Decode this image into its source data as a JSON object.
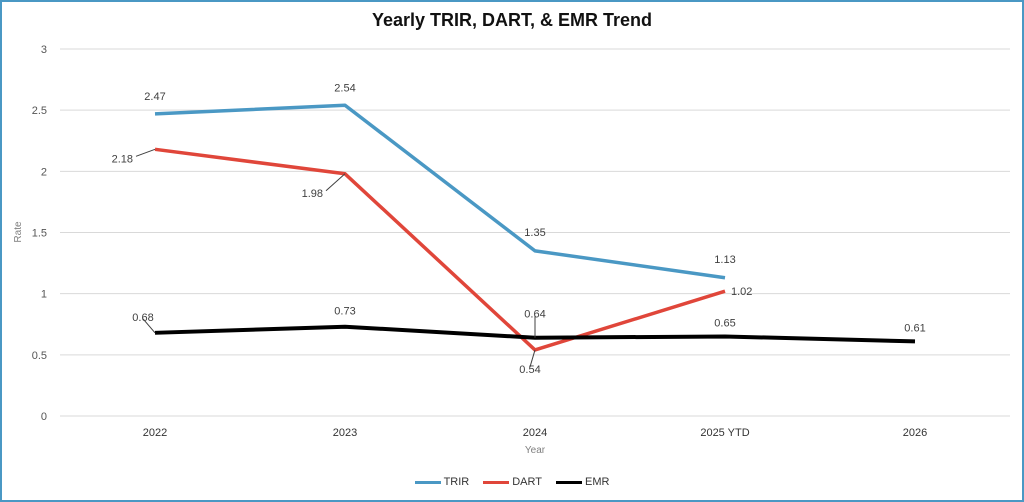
{
  "chart_data": {
    "type": "line",
    "title": "Yearly TRIR, DART, & EMR Trend",
    "xlabel": "Year",
    "ylabel": "Rate",
    "categories": [
      "2022",
      "2023",
      "2024",
      "2025 YTD",
      "2026"
    ],
    "ylim": [
      0,
      3
    ],
    "yticks": [
      "0",
      "0.5",
      "1",
      "1.5",
      "2",
      "2.5",
      "3"
    ],
    "grid": true,
    "legend_position": "bottom",
    "series": [
      {
        "name": "TRIR",
        "color": "#4a98c4",
        "values": [
          2.47,
          2.54,
          1.35,
          1.13,
          null
        ],
        "labels": [
          "2.47",
          "2.54",
          "1.35",
          "1.13",
          ""
        ]
      },
      {
        "name": "DART",
        "color": "#e0463a",
        "values": [
          2.18,
          1.98,
          0.54,
          1.02,
          null
        ],
        "labels": [
          "2.18",
          "1.98",
          "0.54",
          "1.02",
          ""
        ]
      },
      {
        "name": "EMR",
        "color": "#000000",
        "values": [
          0.68,
          0.73,
          0.64,
          0.65,
          0.61
        ],
        "labels": [
          "0.68",
          "0.73",
          "0.64",
          "0.65",
          "0.61"
        ]
      }
    ]
  }
}
